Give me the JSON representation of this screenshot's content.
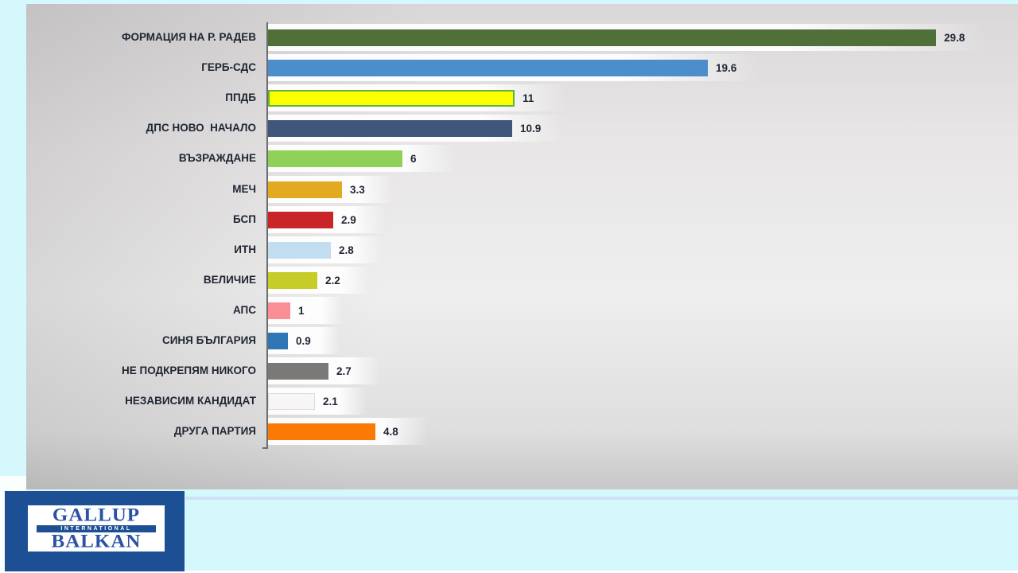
{
  "page": {
    "background_color": "#d4f8fb",
    "panel_color": "#e8e6e6",
    "divider_color": "#cfe1f6",
    "text_color": "#1f2532",
    "axis_color": "#6e6d6d"
  },
  "chart_data": {
    "type": "bar",
    "orientation": "horizontal",
    "title": "",
    "xlabel": "",
    "ylabel": "",
    "xlim": [
      0,
      33
    ],
    "grid": false,
    "legend": false,
    "categories": [
      "ФОРМАЦИЯ НА Р. РАДЕВ",
      "ГЕРБ-СДС",
      "ППДБ",
      "ДПС НОВО  НАЧАЛО",
      "ВЪЗРАЖДАНЕ",
      "МЕЧ",
      "БСП",
      "ИТН",
      "ВЕЛИЧИЕ",
      "АПС",
      "СИНЯ БЪЛГАРИЯ",
      "НЕ ПОДКРЕПЯМ НИКОГО",
      "НЕЗАВИСИМ КАНДИДАТ",
      "ДРУГА ПАРТИЯ"
    ],
    "values": [
      29.8,
      19.6,
      11,
      10.9,
      6,
      3.3,
      2.9,
      2.8,
      2.2,
      1,
      0.9,
      2.7,
      2.1,
      4.8
    ],
    "value_labels": [
      "29.8",
      "19.6",
      "11",
      "10.9",
      "6",
      "3.3",
      "2.9",
      "2.8",
      "2.2",
      "1",
      "0.9",
      "2.7",
      "2.1",
      "4.8"
    ],
    "bar_colors": [
      "#50703a",
      "#4b8ecb",
      "#fbff00",
      "#40567a",
      "#8ed058",
      "#e2a921",
      "#c92428",
      "#c2dcf0",
      "#c6cc28",
      "#f98f94",
      "#2e76b5",
      "#7b7878",
      "#f7f5f5",
      "#fa7a05"
    ],
    "bar_border_colors": [
      null,
      null,
      "#5db33c",
      null,
      null,
      null,
      null,
      null,
      null,
      null,
      null,
      null,
      "#dedcdc",
      null
    ],
    "bar_border_widths": [
      0,
      0,
      2,
      0,
      0,
      0,
      0,
      0,
      0,
      0,
      0,
      0,
      1,
      0
    ]
  },
  "logo": {
    "line1": "GALLUP",
    "line2": "INTERNATIONAL",
    "line3": "BALKAN",
    "box_color": "#1c4f93",
    "text_color": "#2b52a5"
  }
}
